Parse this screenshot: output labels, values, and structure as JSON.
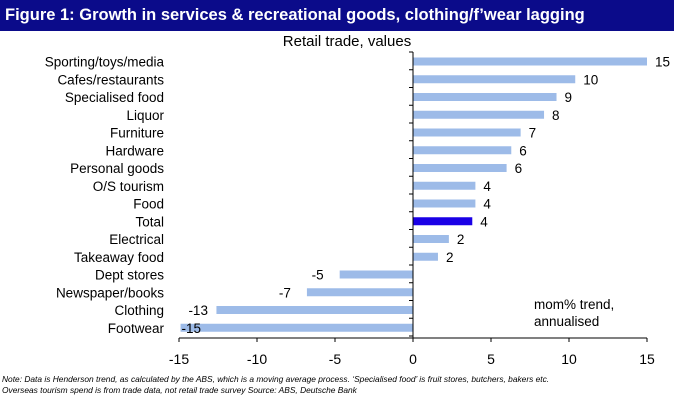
{
  "figure_title": "Figure 1: Growth in services & recreational goods, clothing/f’wear lagging",
  "chart_data": {
    "type": "bar",
    "orientation": "horizontal",
    "title": "Retail trade, values",
    "categories": [
      "Sporting/toys/media",
      "Cafes/restaurants",
      "Specialised food",
      "Liquor",
      "Furniture",
      "Hardware",
      "Personal goods",
      "O/S tourism",
      "Food",
      "Total",
      "Electrical",
      "Takeaway food",
      "Dept stores",
      "Newspaper/books",
      "Clothing",
      "Footwear"
    ],
    "values": [
      15,
      10.4,
      9.2,
      8.4,
      6.9,
      6.3,
      6.0,
      4.0,
      4.0,
      3.8,
      2.3,
      1.6,
      -4.7,
      -6.8,
      -12.6,
      -14.9
    ],
    "data_labels": [
      "15",
      "10",
      "9",
      "8",
      "7",
      "6",
      "6",
      "4",
      "4",
      "4",
      "2",
      "2",
      "-5",
      "-7",
      "-13",
      "-15"
    ],
    "highlight_category": "Total",
    "bar_color": "#9dbbe8",
    "highlight_color": "#1a00e6",
    "xlim": [
      -15,
      15
    ],
    "xticks": [
      -15,
      -10,
      -5,
      0,
      5,
      10,
      15
    ],
    "annotation": [
      "mom% trend,",
      "annualised"
    ]
  },
  "footnote": {
    "line1": "Note: Data is Henderson trend, as calculated by the ABS, which is a moving average process. ‘Specialised food’ is fruit stores, butchers, bakers etc.",
    "line2": "Overseas tourism spend is from trade data, not retail trade survey          Source: ABS, Deutsche Bank"
  }
}
